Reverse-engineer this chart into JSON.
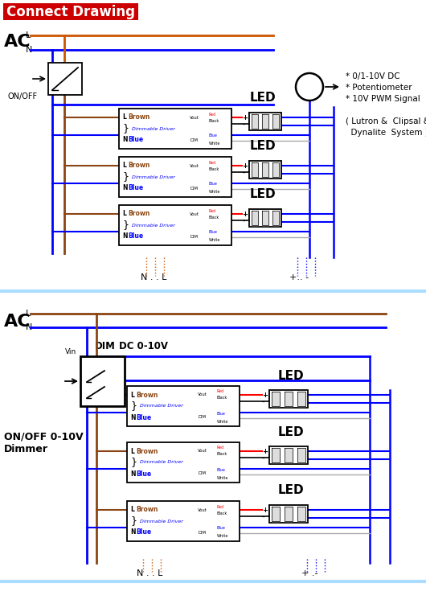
{
  "title": "Connect Drawing",
  "title_bg": "#cc0000",
  "title_color": "#ffffff",
  "bg_color": "#ffffff",
  "notes": [
    "* 0/1-10V DC",
    "* Potentiometer",
    "* 10V PWM Signal",
    "",
    "( Lutron &  Clipsal &",
    "  Dynalite  System )"
  ],
  "section1_bottom_left": "N . . L",
  "section1_bottom_right": "+.. -",
  "section2_bottom_left": "N . . L",
  "section2_bottom_right": "+ .-"
}
